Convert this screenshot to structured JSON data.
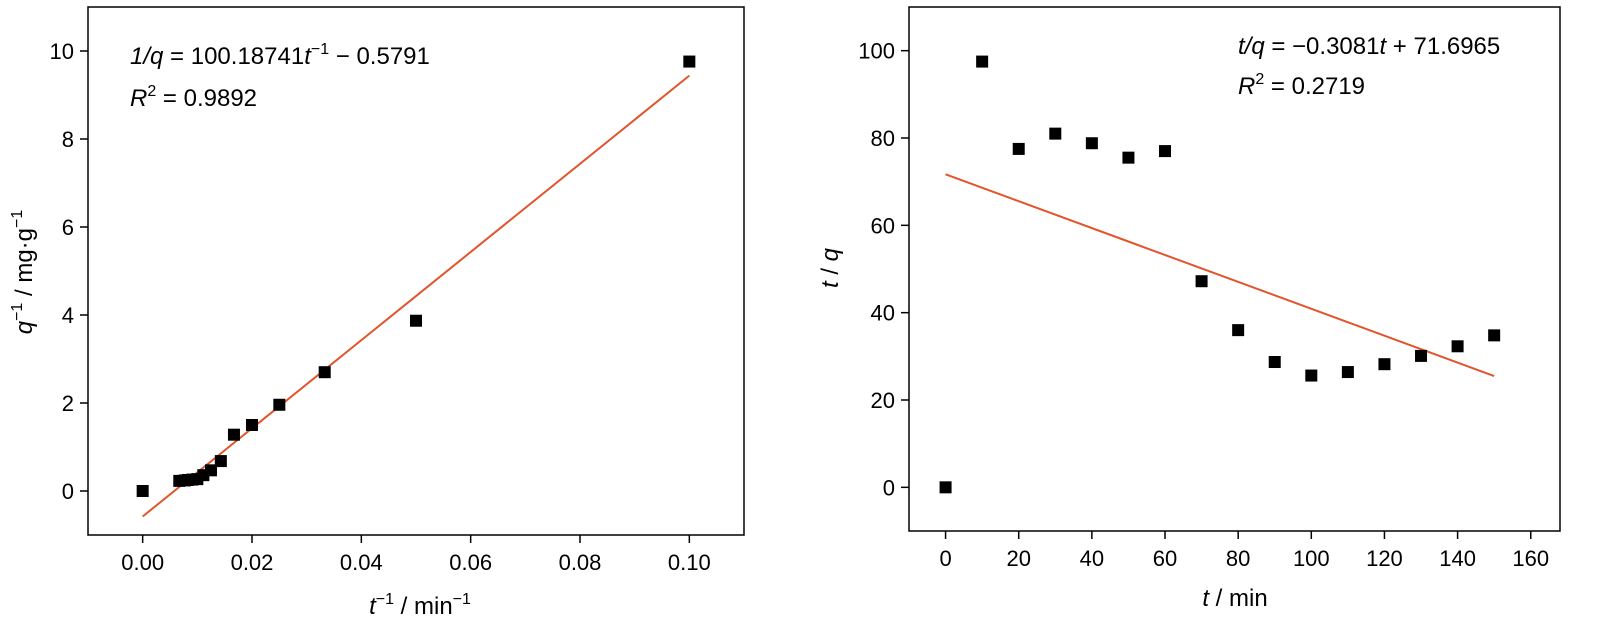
{
  "chart_data": [
    {
      "type": "scatter",
      "title": "",
      "xlabel": {
        "var": "t",
        "sup": "−1",
        "unit": " / min",
        "unit_sup": "−1"
      },
      "ylabel": {
        "var": "q",
        "sup": "−1",
        "unit": " / mg·g",
        "unit_sup": "−1"
      },
      "xlim": [
        -0.01,
        0.11
      ],
      "ylim": [
        -1,
        11
      ],
      "xticks": [
        0,
        0.02,
        0.04,
        0.06,
        0.08,
        0.1
      ],
      "xtick_labels": [
        "0.00",
        "0.02",
        "0.04",
        "0.06",
        "0.08",
        "0.10"
      ],
      "yticks": [
        0,
        2,
        4,
        6,
        8,
        10
      ],
      "ytick_labels": [
        "0",
        "2",
        "4",
        "6",
        "8",
        "10"
      ],
      "grid": false,
      "points": [
        {
          "x": 0,
          "y": 0
        },
        {
          "x": 0.0067,
          "y": 0.23
        },
        {
          "x": 0.0077,
          "y": 0.24
        },
        {
          "x": 0.0083,
          "y": 0.25
        },
        {
          "x": 0.0091,
          "y": 0.26
        },
        {
          "x": 0.01,
          "y": 0.27
        },
        {
          "x": 0.0111,
          "y": 0.36
        },
        {
          "x": 0.0125,
          "y": 0.47
        },
        {
          "x": 0.0143,
          "y": 0.68
        },
        {
          "x": 0.0167,
          "y": 1.28
        },
        {
          "x": 0.02,
          "y": 1.5
        },
        {
          "x": 0.025,
          "y": 1.96
        },
        {
          "x": 0.0333,
          "y": 2.7
        },
        {
          "x": 0.05,
          "y": 3.87
        },
        {
          "x": 0.1,
          "y": 9.76
        }
      ],
      "fit": {
        "slope": 100.18741,
        "intercept": -0.5791,
        "x_range": [
          0,
          0.1
        ]
      },
      "annotations": {
        "eq_var": "1/q",
        "eq_mid": " = 100.18741",
        "eq_t": "t",
        "eq_sup": "−1",
        "eq_tail": " − 0.5791",
        "r2_var": "R",
        "r2_sup": "2",
        "r2_tail": " = 0.9892"
      },
      "colors": {
        "points": "#000000",
        "fit_line": "#e2542b"
      }
    },
    {
      "type": "scatter",
      "title": "",
      "xlabel": {
        "var": "t",
        "unit": " / min"
      },
      "ylabel": {
        "var": "t",
        "unit": " / ",
        "var2": "q"
      },
      "xlim": [
        -10,
        168
      ],
      "ylim": [
        -10,
        110
      ],
      "xticks": [
        0,
        20,
        40,
        60,
        80,
        100,
        120,
        140,
        160
      ],
      "xtick_labels": [
        "0",
        "20",
        "40",
        "60",
        "80",
        "100",
        "120",
        "140",
        "160"
      ],
      "yticks": [
        0,
        20,
        40,
        60,
        80,
        100
      ],
      "ytick_labels": [
        "0",
        "20",
        "40",
        "60",
        "80",
        "100"
      ],
      "grid": false,
      "points": [
        {
          "x": 0,
          "y": 0
        },
        {
          "x": 10,
          "y": 97.5
        },
        {
          "x": 20,
          "y": 77.5
        },
        {
          "x": 30,
          "y": 81
        },
        {
          "x": 40,
          "y": 78.8
        },
        {
          "x": 50,
          "y": 75.5
        },
        {
          "x": 60,
          "y": 77
        },
        {
          "x": 70,
          "y": 47.2
        },
        {
          "x": 80,
          "y": 36
        },
        {
          "x": 90,
          "y": 28.7
        },
        {
          "x": 100,
          "y": 25.6
        },
        {
          "x": 110,
          "y": 26.4
        },
        {
          "x": 120,
          "y": 28.2
        },
        {
          "x": 130,
          "y": 30.1
        },
        {
          "x": 140,
          "y": 32.3
        },
        {
          "x": 150,
          "y": 34.8
        }
      ],
      "fit": {
        "slope": -0.3081,
        "intercept": 71.6965,
        "x_range": [
          0,
          150
        ]
      },
      "annotations": {
        "eq_var": "t/q",
        "eq_mid": " = −0.3081",
        "eq_t": "t",
        "eq_tail": " + 71.6965",
        "r2_var": "R",
        "r2_sup": "2",
        "r2_tail": " = 0.2719"
      },
      "colors": {
        "points": "#000000",
        "fit_line": "#e2542b"
      }
    }
  ]
}
